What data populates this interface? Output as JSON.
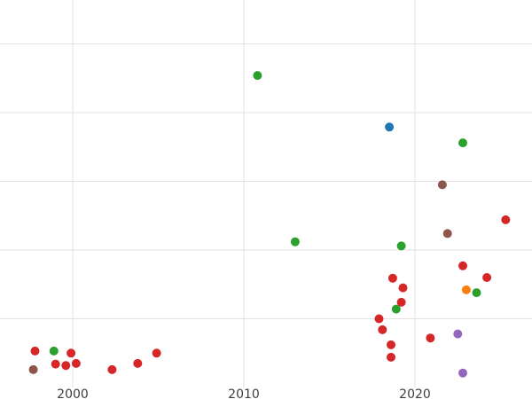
{
  "chart_data": {
    "type": "scatter",
    "title": "",
    "xlabel": "",
    "ylabel": "",
    "legend": "none",
    "grid": true,
    "x_axis": {
      "ticks": [
        2000,
        2010,
        2020
      ],
      "tick_labels": [
        "2000",
        "2010",
        "2020"
      ],
      "range_years": [
        1996.5,
        2026.5
      ]
    },
    "y_axis": {
      "tick_labels": [],
      "grid_units": [
        1,
        2,
        3,
        4,
        5
      ],
      "y_unit": "gridline-spacing (0 = bottom axis, no visible y tick labels)"
    },
    "colors": {
      "red": "#d62728",
      "green": "#2ca02c",
      "blue": "#1f77b4",
      "orange": "#ff7f0e",
      "purple": "#9467bd",
      "brown": "#8c564b"
    },
    "marker_radius_px": 5,
    "series": [
      {
        "name": "red",
        "color_key": "red",
        "points": [
          [
            1997.8,
            0.53
          ],
          [
            1999.0,
            0.34
          ],
          [
            1999.6,
            0.32
          ],
          [
            1999.9,
            0.5
          ],
          [
            2000.2,
            0.35
          ],
          [
            2002.3,
            0.26
          ],
          [
            2003.8,
            0.35
          ],
          [
            2004.9,
            0.5
          ],
          [
            2017.9,
            1.0
          ],
          [
            2018.1,
            0.84
          ],
          [
            2018.6,
            0.62
          ],
          [
            2018.6,
            0.44
          ],
          [
            2018.7,
            1.59
          ],
          [
            2019.2,
            1.24
          ],
          [
            2019.3,
            1.45
          ],
          [
            2020.9,
            0.72
          ],
          [
            2022.8,
            1.77
          ],
          [
            2024.2,
            1.6
          ],
          [
            2025.3,
            2.44
          ]
        ]
      },
      {
        "name": "green",
        "color_key": "green",
        "points": [
          [
            1998.9,
            0.53
          ],
          [
            2010.8,
            4.54
          ],
          [
            2013.0,
            2.12
          ],
          [
            2018.9,
            1.14
          ],
          [
            2019.2,
            2.06
          ],
          [
            2022.8,
            3.56
          ],
          [
            2023.6,
            1.38
          ]
        ]
      },
      {
        "name": "blue",
        "color_key": "blue",
        "points": [
          [
            2018.5,
            3.79
          ]
        ]
      },
      {
        "name": "brown",
        "color_key": "brown",
        "points": [
          [
            1997.7,
            0.26
          ],
          [
            2021.6,
            2.95
          ],
          [
            2021.9,
            2.24
          ]
        ]
      },
      {
        "name": "orange",
        "color_key": "orange",
        "points": [
          [
            2023.0,
            1.42
          ]
        ]
      },
      {
        "name": "purple",
        "color_key": "purple",
        "points": [
          [
            2022.5,
            0.78
          ],
          [
            2022.8,
            0.21
          ]
        ]
      }
    ]
  }
}
